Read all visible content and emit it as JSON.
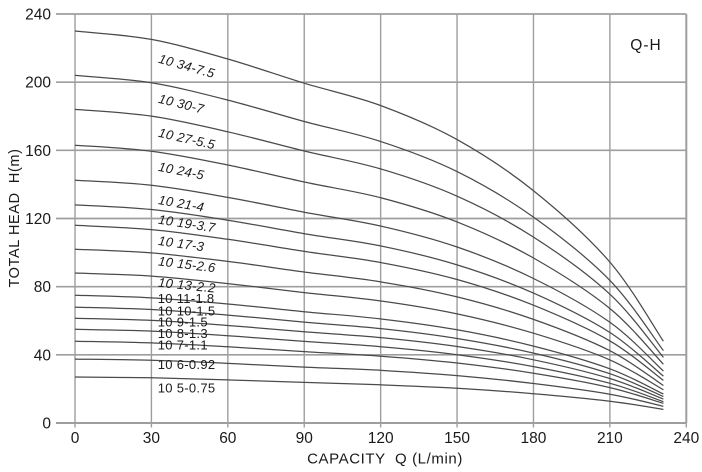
{
  "chart": {
    "corner_label": "Q-H",
    "x_title": "CAPACITY  Q (L/min)",
    "y_title": "TOTAL HEAD  H(m)"
  },
  "chart_data": {
    "type": "line",
    "title": "Q-H",
    "xlabel": "CAPACITY  Q (L/min)",
    "ylabel": "TOTAL HEAD  H(m)",
    "xlim": [
      0,
      240
    ],
    "ylim": [
      0,
      240
    ],
    "x_ticks": [
      0,
      30,
      60,
      90,
      120,
      150,
      180,
      210,
      240
    ],
    "y_ticks": [
      0,
      40,
      80,
      120,
      160,
      200,
      240
    ],
    "grid": "on",
    "legend_position": "labels-on-curves",
    "x": [
      0,
      30,
      60,
      90,
      120,
      150,
      180,
      210,
      231
    ],
    "series": [
      {
        "name": "10 34-7.5",
        "values": [
          230,
          225.1,
          213.6,
          199.4,
          186.3,
          166.3,
          136.3,
          94.4,
          48.0
        ],
        "label_q": 32.5,
        "label_h": 211.5,
        "rotated": true
      },
      {
        "name": "10 30-7",
        "values": [
          204,
          199.6,
          189.5,
          176.9,
          165.2,
          147.5,
          120.8,
          83.7,
          42.5
        ],
        "label_q": 32.5,
        "label_h": 188.0,
        "rotated": true
      },
      {
        "name": "10 27-5.5",
        "values": [
          184,
          180.1,
          170.9,
          159.6,
          149.1,
          133.1,
          109.1,
          75.6,
          38.5
        ],
        "label_q": 32.5,
        "label_h": 168.0,
        "rotated": true
      },
      {
        "name": "10 24-5",
        "values": [
          163,
          159.5,
          151.4,
          141.4,
          132.2,
          118.0,
          96.8,
          67.2,
          34.5
        ],
        "label_q": 32.5,
        "label_h": 148.0,
        "rotated": true
      },
      {
        "name": "10 21-4",
        "values": [
          142.5,
          139.5,
          132.4,
          123.7,
          115.6,
          103.3,
          84.8,
          59.1,
          30.5
        ],
        "label_q": 32.5,
        "label_h": 128.5,
        "rotated": true
      },
      {
        "name": "10 19-3.7",
        "values": [
          128,
          125.3,
          119.0,
          111.1,
          103.9,
          92.8,
          76.2,
          53.1,
          27.5
        ],
        "label_q": 32.5,
        "label_h": 117.0,
        "rotated": true
      },
      {
        "name": "10 17-3",
        "values": [
          116,
          113.5,
          107.8,
          100.7,
          94.2,
          84.2,
          69.1,
          48.2,
          25.0
        ],
        "label_q": 32.5,
        "label_h": 104.5,
        "rotated": true
      },
      {
        "name": "10 15-2.6",
        "values": [
          102,
          99.8,
          94.8,
          88.6,
          82.8,
          74.0,
          60.8,
          42.4,
          22.0
        ],
        "label_q": 32.5,
        "label_h": 92.5,
        "rotated": true
      },
      {
        "name": "10 13-2.2",
        "values": [
          88,
          86.2,
          81.8,
          76.5,
          71.6,
          64.0,
          52.7,
          37.0,
          19.5
        ],
        "label_q": 32.5,
        "label_h": 80.0,
        "rotated": true
      },
      {
        "name": "10 11-1.8",
        "values": [
          75,
          73.4,
          69.8,
          65.3,
          61.1,
          54.7,
          45.1,
          31.8,
          17.0
        ],
        "label_q": 32.5,
        "label_h": 70.5,
        "rotated": false
      },
      {
        "name": "10 10-1.5",
        "values": [
          68,
          66.6,
          63.3,
          59.2,
          55.4,
          49.6,
          41.0,
          28.9,
          15.5
        ],
        "label_q": 32.5,
        "label_h": 63.0,
        "rotated": false
      },
      {
        "name": "10 9-1.5",
        "values": [
          61.5,
          60.2,
          57.2,
          53.5,
          50.1,
          44.9,
          37.1,
          26.1,
          14.0
        ],
        "label_q": 32.5,
        "label_h": 56.5,
        "rotated": false
      },
      {
        "name": "10 8-1.3",
        "values": [
          55,
          53.9,
          51.2,
          47.9,
          44.8,
          40.1,
          33.1,
          23.3,
          12.5
        ],
        "label_q": 32.5,
        "label_h": 49.8,
        "rotated": false
      },
      {
        "name": "10 7-1.1",
        "values": [
          48,
          47.0,
          44.7,
          41.9,
          39.2,
          35.2,
          29.2,
          20.8,
          11.5
        ],
        "label_q": 32.5,
        "label_h": 43.0,
        "rotated": false
      },
      {
        "name": "10 6-0.92",
        "values": [
          37.5,
          36.8,
          35.0,
          32.8,
          30.9,
          27.8,
          23.2,
          16.9,
          9.8
        ],
        "label_q": 32.5,
        "label_h": 31.8,
        "rotated": false
      },
      {
        "name": "10 5-0.75",
        "values": [
          27,
          26.5,
          25.3,
          23.8,
          22.4,
          20.4,
          17.2,
          12.8,
          8.0
        ],
        "label_q": 32.5,
        "label_h": 18.0,
        "rotated": false
      }
    ],
    "colors": {
      "grid": "#9e9e9e",
      "curve": "#4a4a4a",
      "text": "#1a1a1a",
      "background": "#ffffff"
    }
  }
}
